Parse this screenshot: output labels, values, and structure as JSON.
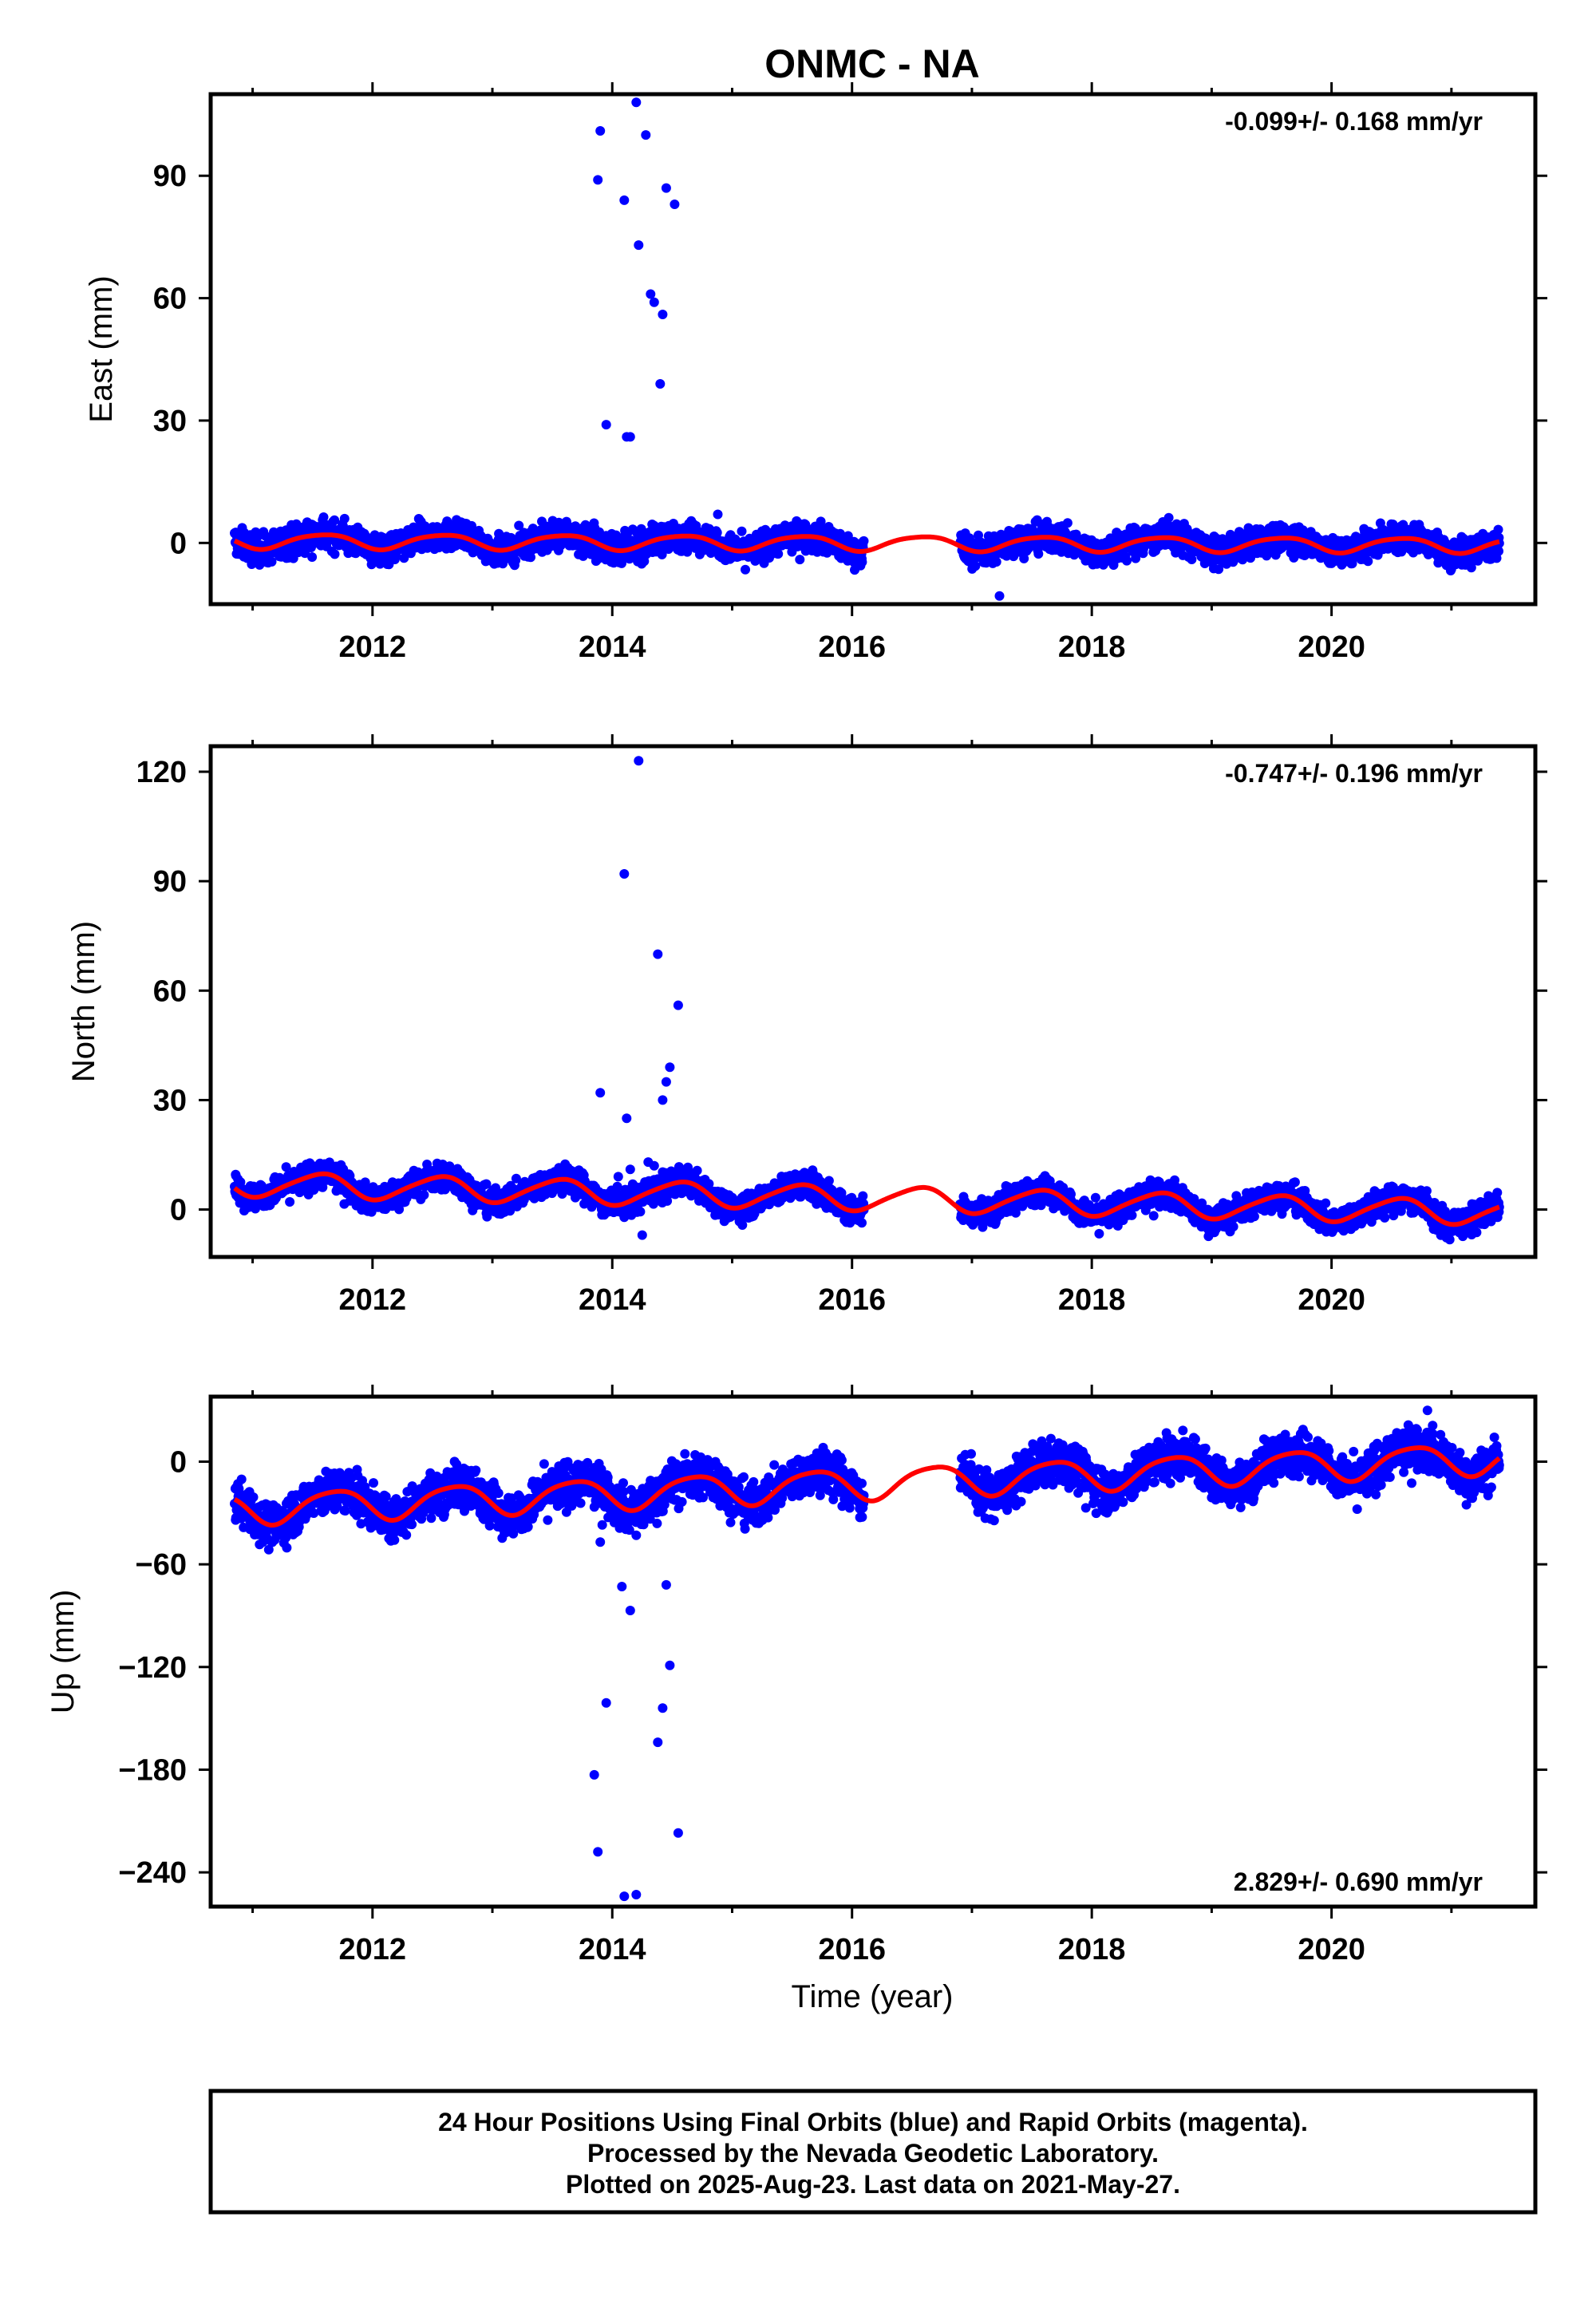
{
  "title": "ONMC - NA",
  "colors": {
    "final_orbits": "#0000ff",
    "fit": "#ff0000",
    "frame": "#000000"
  },
  "xlabel": "Time (year)",
  "footer": {
    "line1": "24 Hour Positions Using Final Orbits (blue) and Rapid Orbits (magenta).",
    "line2": "Processed by the Nevada Geodetic Laboratory.",
    "line3": "Plotted on 2025-Aug-23. Last data on 2021-May-27."
  },
  "chart_data": [
    {
      "type": "scatter",
      "component": "east",
      "ylabel": "East (mm)",
      "rate_label": "-0.099+/- 0.168 mm/yr",
      "xlim": [
        2010.65,
        2021.7
      ],
      "ylim": [
        -15,
        110
      ],
      "xticks": [
        2012,
        2014,
        2016,
        2018,
        2020
      ],
      "yticks": [
        0,
        30,
        60,
        90
      ],
      "data_range": [
        2010.85,
        2021.4
      ],
      "gap": [
        2016.1,
        2016.9
      ],
      "series": [
        {
          "name": "Final Orbits",
          "color": "#0000ff",
          "scatter_amplitude": 1.8
        },
        {
          "name": "Model fit",
          "color": "#ff0000",
          "offset": 0,
          "trend": -0.099,
          "annual_amp": 1.8,
          "annual_phase": 0.58,
          "semiannual_amp": 0.3,
          "semiannual_phase": 0.3
        }
      ],
      "outliers": [
        [
          2013.88,
          89
        ],
        [
          2013.9,
          101
        ],
        [
          2013.95,
          29
        ],
        [
          2014.1,
          84
        ],
        [
          2014.12,
          26
        ],
        [
          2014.15,
          26
        ],
        [
          2014.2,
          108
        ],
        [
          2014.22,
          73
        ],
        [
          2014.28,
          100
        ],
        [
          2014.32,
          61
        ],
        [
          2014.35,
          59
        ],
        [
          2014.4,
          39
        ],
        [
          2014.42,
          56
        ],
        [
          2014.45,
          87
        ],
        [
          2014.52,
          83
        ],
        [
          2014.88,
          7
        ],
        [
          2017.23,
          -13
        ]
      ]
    },
    {
      "type": "scatter",
      "component": "north",
      "ylabel": "North (mm)",
      "rate_label": "-0.747+/- 0.196 mm/yr",
      "xlim": [
        2010.65,
        2021.7
      ],
      "ylim": [
        -13,
        127
      ],
      "xticks": [
        2012,
        2014,
        2016,
        2018,
        2020
      ],
      "yticks": [
        0,
        30,
        60,
        90,
        120
      ],
      "data_range": [
        2010.85,
        2021.4
      ],
      "gap": [
        2016.1,
        2016.9
      ],
      "series": [
        {
          "name": "Final Orbits",
          "color": "#0000ff",
          "scatter_amplitude": 1.9
        },
        {
          "name": "Model fit",
          "color": "#ff0000",
          "offset": 3.2,
          "trend": -0.747,
          "annual_amp": 3.3,
          "annual_phase": 0.55,
          "semiannual_amp": 0.5,
          "semiannual_phase": 0.2
        }
      ],
      "outliers": [
        [
          2013.9,
          32
        ],
        [
          2014.1,
          92
        ],
        [
          2014.12,
          25
        ],
        [
          2014.22,
          123
        ],
        [
          2014.38,
          70
        ],
        [
          2014.42,
          30
        ],
        [
          2014.45,
          35
        ],
        [
          2014.48,
          39
        ],
        [
          2014.55,
          56
        ],
        [
          2014.05,
          9
        ],
        [
          2014.15,
          11
        ],
        [
          2014.3,
          13
        ],
        [
          2014.35,
          12
        ],
        [
          2014.25,
          -7
        ],
        [
          2012.95,
          7
        ]
      ]
    },
    {
      "type": "scatter",
      "component": "up",
      "ylabel": "Up (mm)",
      "rate_label": "2.829+/- 0.690 mm/yr",
      "xlim": [
        2010.65,
        2021.7
      ],
      "ylim": [
        -260,
        38
      ],
      "xticks": [
        2012,
        2014,
        2016,
        2018,
        2020
      ],
      "yticks": [
        0,
        -60,
        -120,
        -180,
        -240
      ],
      "data_range": [
        2010.85,
        2021.4
      ],
      "gap": [
        2016.1,
        2016.9
      ],
      "series": [
        {
          "name": "Final Orbits",
          "color": "#0000ff",
          "scatter_amplitude": 6.5
        },
        {
          "name": "Model fit",
          "color": "#ff0000",
          "offset": -13,
          "trend": 2.829,
          "annual_amp": 9,
          "annual_phase": 0.68,
          "semiannual_amp": 1.5,
          "semiannual_phase": 0.4
        }
      ],
      "outliers": [
        [
          2013.85,
          -183
        ],
        [
          2013.88,
          -228
        ],
        [
          2013.9,
          -47
        ],
        [
          2013.95,
          -141
        ],
        [
          2014.08,
          -73
        ],
        [
          2014.1,
          -254
        ],
        [
          2014.15,
          -87
        ],
        [
          2014.2,
          -253
        ],
        [
          2014.2,
          -43
        ],
        [
          2014.38,
          -164
        ],
        [
          2014.42,
          -144
        ],
        [
          2014.45,
          -72
        ],
        [
          2014.48,
          -119
        ],
        [
          2014.55,
          -217
        ],
        [
          2012.0,
          -37
        ],
        [
          2011.1,
          -39
        ],
        [
          2019.0,
          -21
        ],
        [
          2017.95,
          -27
        ],
        [
          2020.8,
          30
        ],
        [
          2015.95,
          -25
        ]
      ]
    }
  ]
}
